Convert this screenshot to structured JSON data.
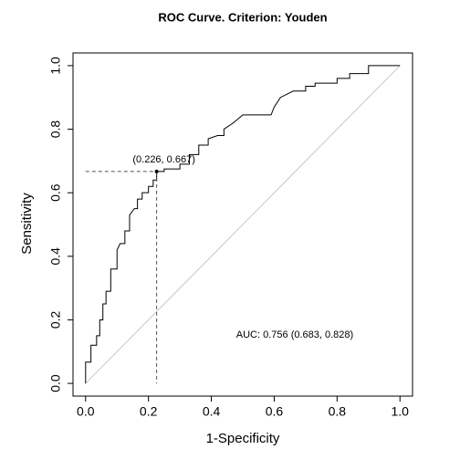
{
  "chart_data": {
    "type": "line",
    "title": "ROC Curve. Criterion: Youden",
    "xlabel": "1-Specificity",
    "ylabel": "Sensitivity",
    "x": [
      0,
      0,
      0.017,
      0.017,
      0.035,
      0.035,
      0.045,
      0.045,
      0.055,
      0.055,
      0.065,
      0.065,
      0.08,
      0.08,
      0.1,
      0.1,
      0.11,
      0.125,
      0.125,
      0.14,
      0.14,
      0.155,
      0.165,
      0.165,
      0.18,
      0.18,
      0.2,
      0.2,
      0.215,
      0.215,
      0.226,
      0.226,
      0.25,
      0.25,
      0.3,
      0.3,
      0.33,
      0.33,
      0.36,
      0.36,
      0.39,
      0.39,
      0.42,
      0.44,
      0.44,
      0.47,
      0.5,
      0.59,
      0.6,
      0.62,
      0.64,
      0.66,
      0.7,
      0.7,
      0.73,
      0.73,
      0.8,
      0.8,
      0.84,
      0.84,
      0.9,
      0.9,
      1
    ],
    "values": [
      0,
      0.067,
      0.067,
      0.12,
      0.12,
      0.15,
      0.15,
      0.2,
      0.2,
      0.25,
      0.25,
      0.29,
      0.29,
      0.36,
      0.36,
      0.42,
      0.44,
      0.44,
      0.48,
      0.48,
      0.53,
      0.55,
      0.55,
      0.58,
      0.58,
      0.6,
      0.6,
      0.62,
      0.62,
      0.64,
      0.64,
      0.667,
      0.667,
      0.675,
      0.675,
      0.69,
      0.69,
      0.72,
      0.72,
      0.75,
      0.75,
      0.77,
      0.78,
      0.78,
      0.8,
      0.82,
      0.845,
      0.845,
      0.87,
      0.9,
      0.91,
      0.92,
      0.92,
      0.935,
      0.935,
      0.945,
      0.945,
      0.96,
      0.96,
      0.975,
      0.975,
      1,
      1
    ],
    "color": "#000000",
    "reference_line": {
      "x": [
        0,
        1
      ],
      "y": [
        0,
        1
      ],
      "color": "#c8c8c8"
    },
    "cutoff": {
      "x": 0.226,
      "y": 0.667,
      "label": "(0.226, 0.667)",
      "color": "#555555"
    },
    "auc_label": "AUC: 0.756 (0.683, 0.828)",
    "xlim": [
      -0.04,
      1.04
    ],
    "ylim": [
      -0.04,
      1.04
    ],
    "xticks": [
      {
        "value": 0,
        "label": "0.0"
      },
      0.2,
      0.4,
      0.6,
      0.8,
      {
        "value": 1,
        "label": "1.0"
      }
    ],
    "yticks": [
      {
        "value": 0,
        "label": "0.0"
      },
      0.2,
      0.4,
      0.6,
      0.8,
      {
        "value": 1,
        "label": "1.0"
      }
    ]
  }
}
